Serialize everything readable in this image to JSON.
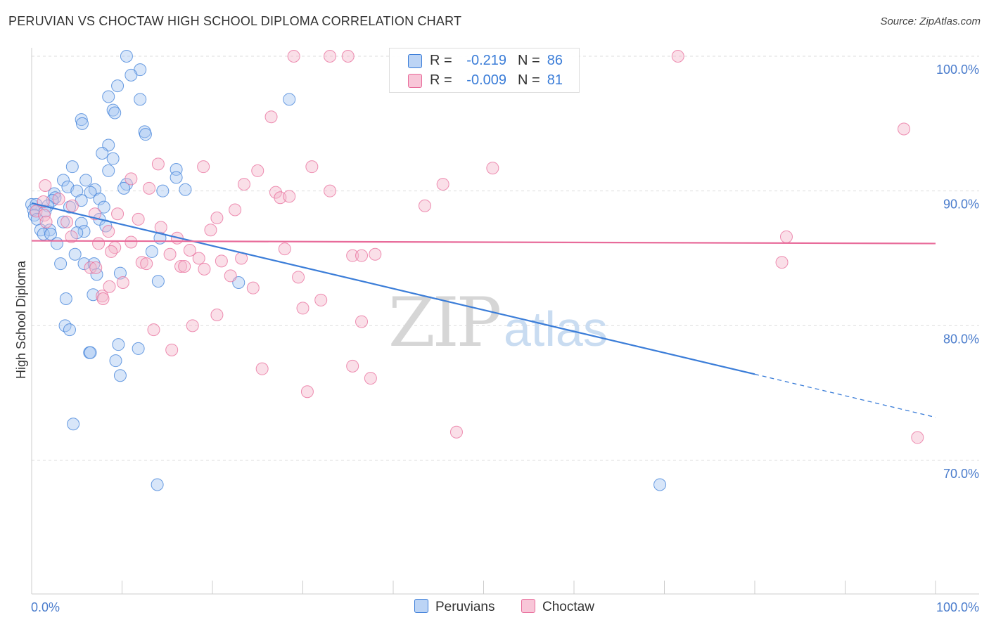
{
  "title": "PERUVIAN VS CHOCTAW HIGH SCHOOL DIPLOMA CORRELATION CHART",
  "source": "Source: ZipAtlas.com",
  "watermark": {
    "zip": "ZIP",
    "atlas": "atlas"
  },
  "colors": {
    "blue": "#3b7dd8",
    "blue_fill": "#a9c8f2",
    "pink": "#e86b9a",
    "pink_fill": "#f5b8cd",
    "tick_label": "#4a7ccc",
    "grid": "#dddddd"
  },
  "legend": {
    "rows": [
      {
        "r_label": "R =",
        "r_value": "-0.219",
        "n_label": "N =",
        "n_value": "86",
        "color_key": "blue"
      },
      {
        "r_label": "R =",
        "r_value": "-0.009",
        "n_label": "N =",
        "n_value": "81",
        "color_key": "pink"
      }
    ]
  },
  "chart_data": {
    "type": "scatter",
    "title": "PERUVIAN VS CHOCTAW HIGH SCHOOL DIPLOMA CORRELATION CHART",
    "xlabel": "",
    "ylabel": "High School Diploma",
    "xlim": [
      0,
      100
    ],
    "ylim": [
      61,
      101
    ],
    "x_tick_labels": [
      "0.0%",
      "100.0%"
    ],
    "y_ticks": [
      {
        "value": 70,
        "label": "70.0%"
      },
      {
        "value": 80,
        "label": "80.0%"
      },
      {
        "value": 90,
        "label": "90.0%"
      },
      {
        "value": 100,
        "label": "100.0%"
      }
    ],
    "grid": "horizontal dashed",
    "legend_position": "bottom-center",
    "series": [
      {
        "name": "Peruvians",
        "color_key": "blue",
        "trend": {
          "x_solid": [
            0,
            80
          ],
          "y_solid": [
            89.1,
            76.4
          ],
          "x_dashed": [
            80,
            100
          ],
          "y_dashed": [
            76.4,
            73.2
          ]
        },
        "points": [
          [
            10.5,
            100
          ],
          [
            12,
            99
          ],
          [
            11,
            98.6
          ],
          [
            9.5,
            97.8
          ],
          [
            8.5,
            97
          ],
          [
            12,
            96.8
          ],
          [
            28.5,
            96.8
          ],
          [
            9,
            96
          ],
          [
            9.2,
            95.8
          ],
          [
            5.5,
            95.3
          ],
          [
            5.6,
            95
          ],
          [
            12.5,
            94.4
          ],
          [
            12.6,
            94.2
          ],
          [
            8.5,
            93.4
          ],
          [
            7.8,
            92.8
          ],
          [
            9,
            92.4
          ],
          [
            4.5,
            91.8
          ],
          [
            16,
            91.6
          ],
          [
            8.5,
            91.5
          ],
          [
            16,
            91
          ],
          [
            3.5,
            90.8
          ],
          [
            6,
            90.8
          ],
          [
            10.5,
            90.5
          ],
          [
            10.2,
            90.2
          ],
          [
            4,
            90.3
          ],
          [
            7,
            90.1
          ],
          [
            5,
            90
          ],
          [
            14.5,
            90
          ],
          [
            17,
            90.1
          ],
          [
            6.5,
            89.9
          ],
          [
            2.5,
            89.8
          ],
          [
            2.6,
            89.5
          ],
          [
            7.5,
            89.4
          ],
          [
            5.5,
            89.3
          ],
          [
            2.3,
            89.3
          ],
          [
            0,
            89
          ],
          [
            0.5,
            89
          ],
          [
            1.8,
            88.9
          ],
          [
            8,
            88.8
          ],
          [
            0.2,
            88.6
          ],
          [
            4.2,
            88.8
          ],
          [
            1.5,
            88.5
          ],
          [
            0.3,
            88.2
          ],
          [
            0.6,
            87.9
          ],
          [
            7.5,
            87.9
          ],
          [
            3.5,
            87.7
          ],
          [
            5.5,
            87.6
          ],
          [
            8.2,
            87.4
          ],
          [
            1,
            87.1
          ],
          [
            2,
            87.1
          ],
          [
            5.8,
            87
          ],
          [
            1.3,
            86.8
          ],
          [
            2.1,
            86.8
          ],
          [
            5,
            86.9
          ],
          [
            14.2,
            86.5
          ],
          [
            2.8,
            86.1
          ],
          [
            13.3,
            85.5
          ],
          [
            4.8,
            85.3
          ],
          [
            3.2,
            84.6
          ],
          [
            5.8,
            84.6
          ],
          [
            6.9,
            84.6
          ],
          [
            7.2,
            83.8
          ],
          [
            9.8,
            83.9
          ],
          [
            14,
            83.3
          ],
          [
            22.9,
            83.2
          ],
          [
            6.8,
            82.3
          ],
          [
            3.8,
            82
          ],
          [
            3.7,
            80
          ],
          [
            4.2,
            79.7
          ],
          [
            9.6,
            78.6
          ],
          [
            11.8,
            78.3
          ],
          [
            6.4,
            78
          ],
          [
            6.5,
            78
          ],
          [
            9.3,
            77.4
          ],
          [
            9.8,
            76.3
          ],
          [
            4.6,
            72.7
          ],
          [
            13.9,
            68.2
          ],
          [
            69.5,
            68.2
          ]
        ]
      },
      {
        "name": "Choctaw",
        "color_key": "pink",
        "trend": {
          "x_solid": [
            0,
            100
          ],
          "y_solid": [
            86.3,
            86.1
          ]
        },
        "points": [
          [
            29,
            100
          ],
          [
            33,
            100
          ],
          [
            35,
            100
          ],
          [
            71.5,
            100
          ],
          [
            26.5,
            95.5
          ],
          [
            96.5,
            94.6
          ],
          [
            14,
            92
          ],
          [
            19,
            91.8
          ],
          [
            31,
            91.8
          ],
          [
            51,
            91.7
          ],
          [
            25,
            91.5
          ],
          [
            11,
            90.9
          ],
          [
            1.5,
            90.4
          ],
          [
            23.5,
            90.5
          ],
          [
            45.5,
            90.5
          ],
          [
            13,
            90.2
          ],
          [
            27,
            89.9
          ],
          [
            33,
            90
          ],
          [
            27.5,
            89.5
          ],
          [
            28.5,
            89.6
          ],
          [
            3,
            89.4
          ],
          [
            1.3,
            89.2
          ],
          [
            4.5,
            88.9
          ],
          [
            43.5,
            88.9
          ],
          [
            22.5,
            88.6
          ],
          [
            0.5,
            88.5
          ],
          [
            1.4,
            88.2
          ],
          [
            9.5,
            88.3
          ],
          [
            7,
            88.3
          ],
          [
            20.5,
            88
          ],
          [
            11.8,
            87.9
          ],
          [
            1.6,
            87.7
          ],
          [
            3.9,
            87.7
          ],
          [
            14.3,
            87.3
          ],
          [
            19.8,
            87.1
          ],
          [
            8.5,
            87
          ],
          [
            4.4,
            86.6
          ],
          [
            16.1,
            86.5
          ],
          [
            11,
            86.2
          ],
          [
            7.4,
            86.1
          ],
          [
            83.5,
            86.6
          ],
          [
            9.2,
            85.8
          ],
          [
            17.5,
            85.6
          ],
          [
            28,
            85.7
          ],
          [
            8.8,
            85.5
          ],
          [
            15.3,
            85.3
          ],
          [
            35.5,
            85.2
          ],
          [
            36.5,
            85.2
          ],
          [
            38,
            85.3
          ],
          [
            18.5,
            85
          ],
          [
            23.2,
            85
          ],
          [
            21,
            84.8
          ],
          [
            12.2,
            84.7
          ],
          [
            83,
            84.7
          ],
          [
            12.7,
            84.6
          ],
          [
            16.5,
            84.4
          ],
          [
            16.9,
            84.4
          ],
          [
            6.5,
            84.3
          ],
          [
            19.1,
            84.2
          ],
          [
            7.1,
            84.3
          ],
          [
            22,
            83.7
          ],
          [
            29.5,
            83.6
          ],
          [
            10.1,
            83.2
          ],
          [
            8.6,
            82.9
          ],
          [
            24.5,
            82.8
          ],
          [
            7.8,
            82.2
          ],
          [
            7.9,
            82
          ],
          [
            32,
            81.9
          ],
          [
            30,
            81.3
          ],
          [
            20.5,
            80.8
          ],
          [
            36.5,
            80.3
          ],
          [
            17.8,
            80
          ],
          [
            13.5,
            79.7
          ],
          [
            15.5,
            78.2
          ],
          [
            25.5,
            76.8
          ],
          [
            35.5,
            77
          ],
          [
            37.5,
            76.1
          ],
          [
            30.5,
            75.1
          ],
          [
            47,
            72.1
          ],
          [
            98,
            71.7
          ]
        ]
      }
    ]
  }
}
